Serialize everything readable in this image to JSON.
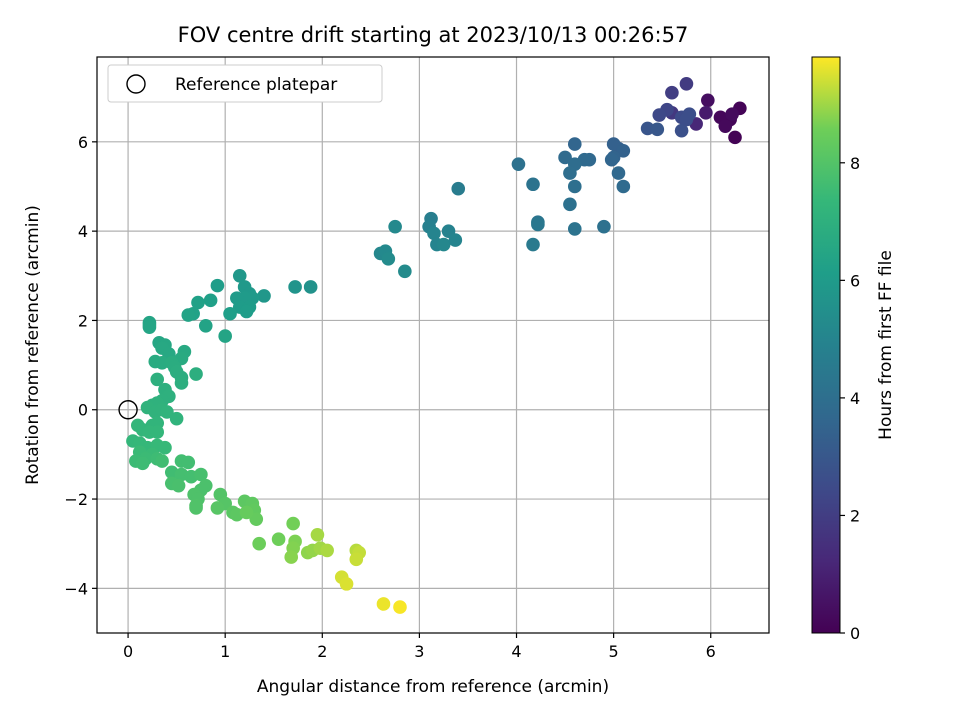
{
  "chart_data": {
    "type": "scatter",
    "title": "FOV centre drift starting at 2023/10/13 00:26:57",
    "xlabel": "Angular distance from reference (arcmin)",
    "ylabel": "Rotation from reference (arcmin)",
    "xlim": [
      -0.32,
      6.6
    ],
    "ylim": [
      -5.0,
      7.9
    ],
    "xticks": [
      "0",
      "1",
      "2",
      "3",
      "4",
      "5",
      "6"
    ],
    "yticks": [
      "−4",
      "−2",
      "0",
      "2",
      "4",
      "6"
    ],
    "grid": true,
    "legend": {
      "location": "upper-left",
      "entries": [
        "Reference platepar"
      ]
    },
    "reference_point": {
      "x": 0,
      "y": 0
    },
    "colorbar": {
      "label": "Hours from first FF file",
      "range": [
        0,
        9.8
      ],
      "ticks": [
        "0",
        "2",
        "4",
        "6",
        "8"
      ],
      "colormap": "viridis"
    },
    "points": [
      {
        "x": 6.25,
        "y": 6.1,
        "h": 0.05
      },
      {
        "x": 6.3,
        "y": 6.75,
        "h": 0.1
      },
      {
        "x": 6.2,
        "y": 6.5,
        "h": 0.15
      },
      {
        "x": 6.1,
        "y": 6.55,
        "h": 0.2
      },
      {
        "x": 6.15,
        "y": 6.35,
        "h": 0.25
      },
      {
        "x": 6.22,
        "y": 6.62,
        "h": 0.3
      },
      {
        "x": 5.97,
        "y": 6.93,
        "h": 0.4
      },
      {
        "x": 5.95,
        "y": 6.65,
        "h": 0.8
      },
      {
        "x": 5.85,
        "y": 6.4,
        "h": 1.2
      },
      {
        "x": 5.6,
        "y": 6.65,
        "h": 1.8
      },
      {
        "x": 5.75,
        "y": 7.3,
        "h": 1.9
      },
      {
        "x": 5.6,
        "y": 7.1,
        "h": 2.0
      },
      {
        "x": 5.55,
        "y": 6.72,
        "h": 2.3
      },
      {
        "x": 5.47,
        "y": 6.6,
        "h": 2.4
      },
      {
        "x": 5.7,
        "y": 6.55,
        "h": 2.5
      },
      {
        "x": 5.78,
        "y": 6.62,
        "h": 2.6
      },
      {
        "x": 5.7,
        "y": 6.25,
        "h": 2.7
      },
      {
        "x": 5.35,
        "y": 6.3,
        "h": 2.9
      },
      {
        "x": 5.45,
        "y": 6.28,
        "h": 3.0
      },
      {
        "x": 5.75,
        "y": 6.5,
        "h": 2.6
      },
      {
        "x": 5.05,
        "y": 5.85,
        "h": 3.3
      },
      {
        "x": 5.0,
        "y": 5.95,
        "h": 3.4
      },
      {
        "x": 5.1,
        "y": 5.8,
        "h": 3.45
      },
      {
        "x": 5.0,
        "y": 5.65,
        "h": 3.5
      },
      {
        "x": 4.98,
        "y": 5.6,
        "h": 3.6
      },
      {
        "x": 5.05,
        "y": 5.3,
        "h": 3.7
      },
      {
        "x": 5.1,
        "y": 5.0,
        "h": 3.8
      },
      {
        "x": 4.6,
        "y": 5.95,
        "h": 3.6
      },
      {
        "x": 4.75,
        "y": 5.6,
        "h": 3.7
      },
      {
        "x": 4.7,
        "y": 5.6,
        "h": 3.75
      },
      {
        "x": 4.5,
        "y": 5.65,
        "h": 3.8
      },
      {
        "x": 4.6,
        "y": 5.5,
        "h": 3.9
      },
      {
        "x": 4.55,
        "y": 5.3,
        "h": 3.95
      },
      {
        "x": 4.6,
        "y": 5.0,
        "h": 4.0
      },
      {
        "x": 4.55,
        "y": 4.6,
        "h": 4.1
      },
      {
        "x": 4.6,
        "y": 4.05,
        "h": 4.2
      },
      {
        "x": 4.9,
        "y": 4.1,
        "h": 4.1
      },
      {
        "x": 4.02,
        "y": 5.5,
        "h": 4.1
      },
      {
        "x": 4.17,
        "y": 5.05,
        "h": 4.2
      },
      {
        "x": 4.22,
        "y": 4.2,
        "h": 4.3
      },
      {
        "x": 4.22,
        "y": 4.15,
        "h": 4.4
      },
      {
        "x": 4.17,
        "y": 3.7,
        "h": 4.5
      },
      {
        "x": 3.4,
        "y": 4.95,
        "h": 4.6
      },
      {
        "x": 3.12,
        "y": 4.28,
        "h": 4.7
      },
      {
        "x": 3.1,
        "y": 4.1,
        "h": 4.8
      },
      {
        "x": 3.3,
        "y": 4.0,
        "h": 4.9
      },
      {
        "x": 3.15,
        "y": 3.95,
        "h": 5.0
      },
      {
        "x": 3.18,
        "y": 3.7,
        "h": 5.0
      },
      {
        "x": 3.25,
        "y": 3.7,
        "h": 5.1
      },
      {
        "x": 3.37,
        "y": 3.8,
        "h": 5.0
      },
      {
        "x": 2.75,
        "y": 4.1,
        "h": 5.2
      },
      {
        "x": 2.6,
        "y": 3.5,
        "h": 5.1
      },
      {
        "x": 2.65,
        "y": 3.55,
        "h": 5.2
      },
      {
        "x": 2.68,
        "y": 3.38,
        "h": 5.3
      },
      {
        "x": 2.85,
        "y": 3.1,
        "h": 5.3
      },
      {
        "x": 1.88,
        "y": 2.75,
        "h": 5.6
      },
      {
        "x": 1.72,
        "y": 2.75,
        "h": 5.7
      },
      {
        "x": 1.4,
        "y": 2.55,
        "h": 5.8
      },
      {
        "x": 1.15,
        "y": 3.0,
        "h": 5.85
      },
      {
        "x": 1.2,
        "y": 2.75,
        "h": 5.9
      },
      {
        "x": 1.25,
        "y": 2.6,
        "h": 5.9
      },
      {
        "x": 1.28,
        "y": 2.5,
        "h": 5.95
      },
      {
        "x": 1.2,
        "y": 2.5,
        "h": 6.0
      },
      {
        "x": 1.12,
        "y": 2.5,
        "h": 6.0
      },
      {
        "x": 1.15,
        "y": 2.3,
        "h": 6.05
      },
      {
        "x": 1.25,
        "y": 2.3,
        "h": 6.05
      },
      {
        "x": 1.22,
        "y": 2.2,
        "h": 6.1
      },
      {
        "x": 1.05,
        "y": 2.15,
        "h": 6.15
      },
      {
        "x": 0.92,
        "y": 2.78,
        "h": 6.1
      },
      {
        "x": 0.85,
        "y": 2.45,
        "h": 6.2
      },
      {
        "x": 0.72,
        "y": 2.4,
        "h": 6.25
      },
      {
        "x": 0.67,
        "y": 2.15,
        "h": 6.3
      },
      {
        "x": 0.62,
        "y": 2.12,
        "h": 6.35
      },
      {
        "x": 0.8,
        "y": 1.88,
        "h": 6.35
      },
      {
        "x": 1.0,
        "y": 1.65,
        "h": 6.4
      },
      {
        "x": 0.22,
        "y": 1.95,
        "h": 6.4
      },
      {
        "x": 0.22,
        "y": 1.9,
        "h": 6.45
      },
      {
        "x": 0.22,
        "y": 1.85,
        "h": 6.45
      },
      {
        "x": 0.32,
        "y": 1.5,
        "h": 6.5
      },
      {
        "x": 0.38,
        "y": 1.45,
        "h": 6.55
      },
      {
        "x": 0.35,
        "y": 1.38,
        "h": 6.6
      },
      {
        "x": 0.42,
        "y": 1.25,
        "h": 6.6
      },
      {
        "x": 0.58,
        "y": 1.3,
        "h": 6.65
      },
      {
        "x": 0.55,
        "y": 1.15,
        "h": 6.7
      },
      {
        "x": 0.28,
        "y": 1.08,
        "h": 6.75
      },
      {
        "x": 0.35,
        "y": 1.05,
        "h": 6.75
      },
      {
        "x": 0.45,
        "y": 1.05,
        "h": 6.8
      },
      {
        "x": 0.48,
        "y": 0.95,
        "h": 6.8
      },
      {
        "x": 0.5,
        "y": 0.85,
        "h": 6.85
      },
      {
        "x": 0.55,
        "y": 0.72,
        "h": 6.85
      },
      {
        "x": 0.7,
        "y": 0.8,
        "h": 6.9
      },
      {
        "x": 0.55,
        "y": 0.6,
        "h": 6.9
      },
      {
        "x": 0.3,
        "y": 0.68,
        "h": 6.95
      },
      {
        "x": 0.38,
        "y": 0.45,
        "h": 6.95
      },
      {
        "x": 0.42,
        "y": 0.3,
        "h": 7.0
      },
      {
        "x": 0.35,
        "y": 0.2,
        "h": 7.0
      },
      {
        "x": 0.3,
        "y": 0.15,
        "h": 7.05
      },
      {
        "x": 0.25,
        "y": 0.1,
        "h": 7.05
      },
      {
        "x": 0.2,
        "y": 0.05,
        "h": 7.1
      },
      {
        "x": 0.28,
        "y": -0.05,
        "h": 7.1
      },
      {
        "x": 0.35,
        "y": 0.0,
        "h": 7.1
      },
      {
        "x": 0.4,
        "y": -0.05,
        "h": 7.15
      },
      {
        "x": 0.5,
        "y": -0.2,
        "h": 7.15
      },
      {
        "x": 0.3,
        "y": -0.3,
        "h": 7.2
      },
      {
        "x": 0.25,
        "y": -0.35,
        "h": 7.2
      },
      {
        "x": 0.1,
        "y": -0.35,
        "h": 7.25
      },
      {
        "x": 0.15,
        "y": -0.45,
        "h": 7.25
      },
      {
        "x": 0.22,
        "y": -0.5,
        "h": 7.3
      },
      {
        "x": 0.3,
        "y": -0.5,
        "h": 7.3
      },
      {
        "x": 0.05,
        "y": -0.7,
        "h": 7.3
      },
      {
        "x": 0.12,
        "y": -0.75,
        "h": 7.35
      },
      {
        "x": 0.2,
        "y": -0.85,
        "h": 7.35
      },
      {
        "x": 0.3,
        "y": -0.8,
        "h": 7.4
      },
      {
        "x": 0.38,
        "y": -0.85,
        "h": 7.4
      },
      {
        "x": 0.12,
        "y": -0.95,
        "h": 7.45
      },
      {
        "x": 0.25,
        "y": -1.0,
        "h": 7.45
      },
      {
        "x": 0.18,
        "y": -1.1,
        "h": 7.5
      },
      {
        "x": 0.08,
        "y": -1.15,
        "h": 7.5
      },
      {
        "x": 0.15,
        "y": -1.2,
        "h": 7.55
      },
      {
        "x": 0.3,
        "y": -1.1,
        "h": 7.55
      },
      {
        "x": 0.35,
        "y": -1.15,
        "h": 7.6
      },
      {
        "x": 0.45,
        "y": -1.4,
        "h": 7.6
      },
      {
        "x": 0.55,
        "y": -1.15,
        "h": 7.65
      },
      {
        "x": 0.62,
        "y": -1.18,
        "h": 7.65
      },
      {
        "x": 0.55,
        "y": -1.45,
        "h": 7.7
      },
      {
        "x": 0.65,
        "y": -1.5,
        "h": 7.7
      },
      {
        "x": 0.75,
        "y": -1.45,
        "h": 7.75
      },
      {
        "x": 0.45,
        "y": -1.65,
        "h": 7.75
      },
      {
        "x": 0.52,
        "y": -1.7,
        "h": 7.8
      },
      {
        "x": 0.8,
        "y": -1.7,
        "h": 7.85
      },
      {
        "x": 0.75,
        "y": -1.8,
        "h": 7.85
      },
      {
        "x": 0.68,
        "y": -1.9,
        "h": 7.9
      },
      {
        "x": 0.72,
        "y": -2.0,
        "h": 7.9
      },
      {
        "x": 0.7,
        "y": -2.15,
        "h": 7.95
      },
      {
        "x": 0.7,
        "y": -2.2,
        "h": 7.95
      },
      {
        "x": 0.95,
        "y": -1.9,
        "h": 8.0
      },
      {
        "x": 1.0,
        "y": -2.1,
        "h": 8.05
      },
      {
        "x": 0.92,
        "y": -2.2,
        "h": 8.1
      },
      {
        "x": 1.08,
        "y": -2.3,
        "h": 8.15
      },
      {
        "x": 1.12,
        "y": -2.35,
        "h": 8.2
      },
      {
        "x": 1.2,
        "y": -2.05,
        "h": 8.2
      },
      {
        "x": 1.28,
        "y": -2.1,
        "h": 8.25
      },
      {
        "x": 1.3,
        "y": -2.25,
        "h": 8.3
      },
      {
        "x": 1.32,
        "y": -2.45,
        "h": 8.35
      },
      {
        "x": 1.22,
        "y": -2.3,
        "h": 8.4
      },
      {
        "x": 1.35,
        "y": -3.0,
        "h": 8.5
      },
      {
        "x": 1.55,
        "y": -2.9,
        "h": 8.55
      },
      {
        "x": 1.7,
        "y": -2.55,
        "h": 8.6
      },
      {
        "x": 1.72,
        "y": -2.95,
        "h": 8.7
      },
      {
        "x": 1.7,
        "y": -3.1,
        "h": 8.75
      },
      {
        "x": 1.68,
        "y": -3.3,
        "h": 8.8
      },
      {
        "x": 1.85,
        "y": -3.2,
        "h": 8.85
      },
      {
        "x": 1.9,
        "y": -3.15,
        "h": 8.9
      },
      {
        "x": 1.98,
        "y": -3.1,
        "h": 9.0
      },
      {
        "x": 1.95,
        "y": -2.8,
        "h": 9.05
      },
      {
        "x": 2.05,
        "y": -3.15,
        "h": 9.1
      },
      {
        "x": 2.35,
        "y": -3.15,
        "h": 9.2
      },
      {
        "x": 2.38,
        "y": -3.2,
        "h": 9.3
      },
      {
        "x": 2.35,
        "y": -3.35,
        "h": 9.35
      },
      {
        "x": 2.2,
        "y": -3.75,
        "h": 9.45
      },
      {
        "x": 2.25,
        "y": -3.9,
        "h": 9.5
      },
      {
        "x": 2.63,
        "y": -4.35,
        "h": 9.65
      },
      {
        "x": 2.8,
        "y": -4.42,
        "h": 9.75
      }
    ]
  }
}
